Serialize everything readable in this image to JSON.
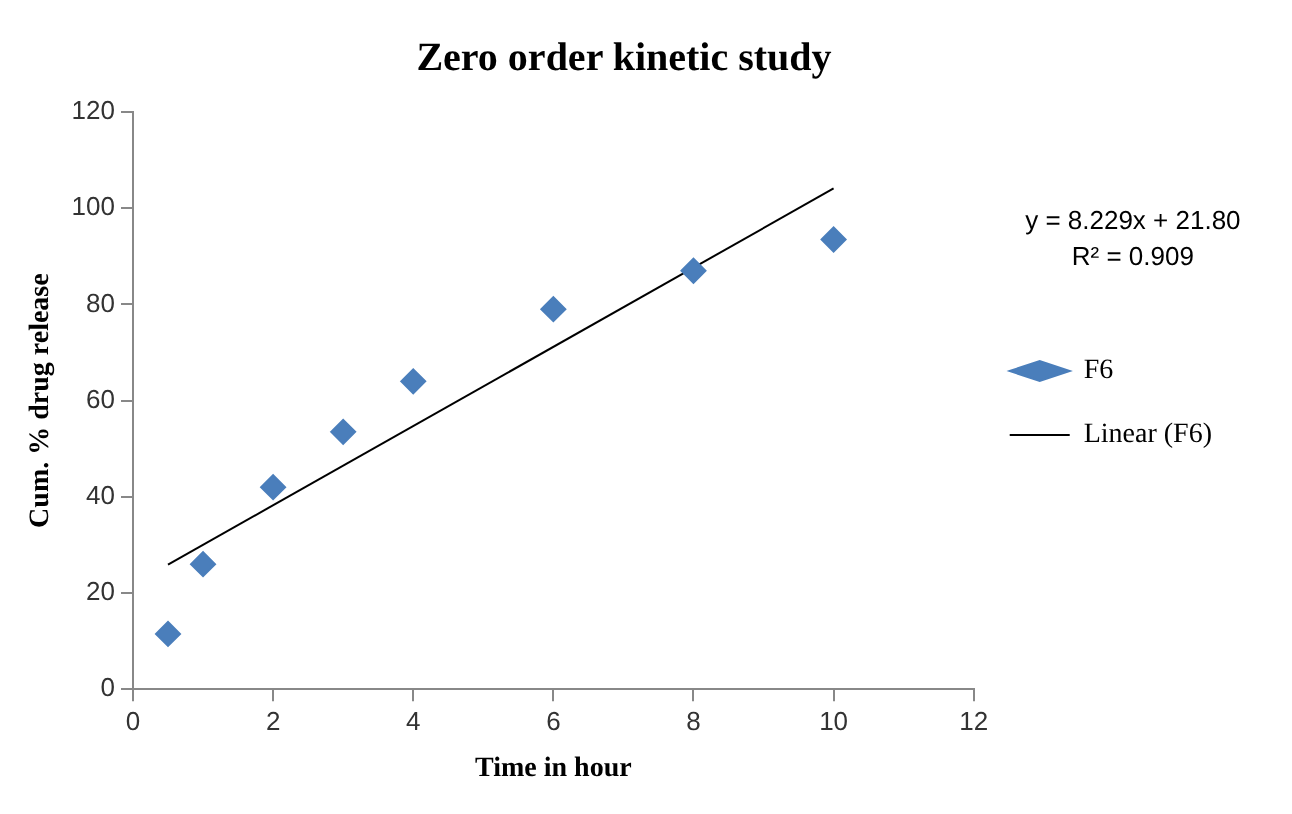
{
  "chart_data": {
    "type": "scatter",
    "title": "Zero order kinetic study",
    "xlabel": "Time in hour",
    "ylabel": "Cum. % drug release",
    "xlim": [
      0,
      12
    ],
    "xticks": [
      0,
      2,
      4,
      6,
      8,
      10,
      12
    ],
    "ylim": [
      0,
      120
    ],
    "yticks": [
      0,
      20,
      40,
      60,
      80,
      100,
      120
    ],
    "grid": false,
    "legend": "right",
    "annotations": [
      "y = 8.229x + 21.80",
      "R² = 0.909"
    ],
    "series": [
      {
        "name": "F6",
        "marker": "diamond",
        "color": "#4a7ebb",
        "x": [
          0.5,
          1,
          2,
          3,
          4,
          6,
          8,
          10
        ],
        "values": [
          11.5,
          26,
          42,
          53.5,
          64,
          79,
          87,
          93.5
        ]
      },
      {
        "name": "Linear (F6)",
        "type": "line",
        "color": "#000000",
        "x": [
          0.5,
          10
        ],
        "values": [
          25.9,
          104.1
        ],
        "line_style": "solid"
      }
    ]
  }
}
